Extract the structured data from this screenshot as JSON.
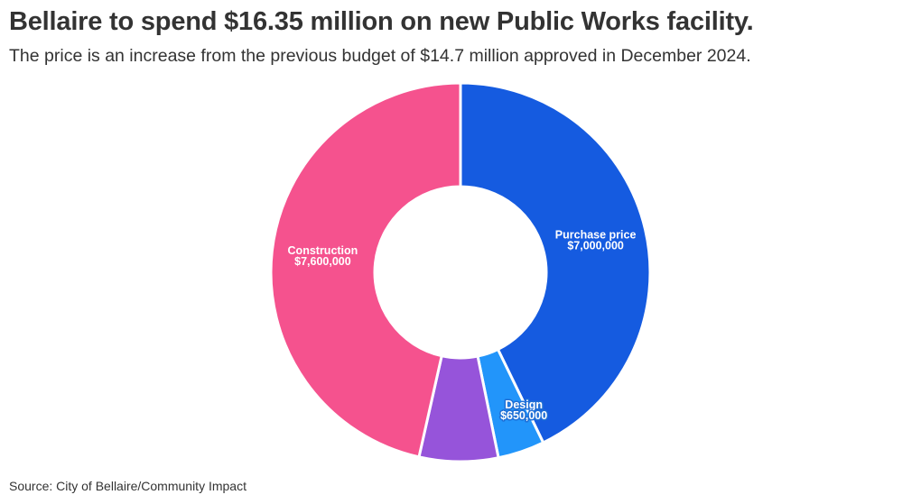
{
  "chart_data": {
    "type": "pie",
    "title": "Bellaire to spend $16.35 million on new Public Works facility.",
    "subtitle": "The price is an increase from the previous budget of $14.7 million approved in December 2024.",
    "source": "Source: City of Bellaire/Community Impact",
    "donut": true,
    "slices": [
      {
        "name": "Purchase price",
        "value": 7000000,
        "value_label": "$7,000,000",
        "color": "#155be0",
        "show_label": true
      },
      {
        "name": "Design",
        "value": 650000,
        "value_label": "$650,000",
        "color": "#2295fa",
        "show_label": true
      },
      {
        "name": "",
        "value": 1100000,
        "value_label": "",
        "color": "#9654da",
        "show_label": false
      },
      {
        "name": "Construction",
        "value": 7600000,
        "value_label": "$7,600,000",
        "color": "#f5528e",
        "show_label": true
      }
    ]
  }
}
